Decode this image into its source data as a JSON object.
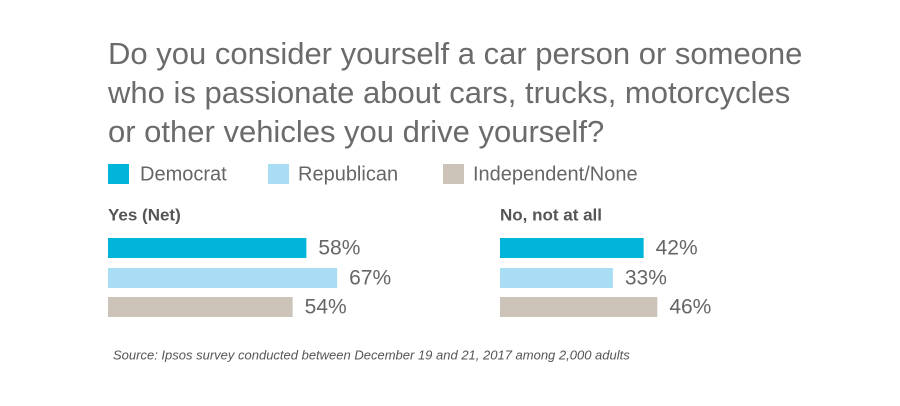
{
  "chart_data": {
    "type": "bar",
    "title": "Do you consider yourself a car person or someone who is passionate about cars, trucks, motorcycles or other vehicles you drive yourself?",
    "categories": [
      "Yes (Net)",
      "No, not at all"
    ],
    "series": [
      {
        "name": "Democrat",
        "color": "#00b5d9",
        "values": [
          58,
          42
        ],
        "value_labels": [
          "58%",
          "42%"
        ]
      },
      {
        "name": "Republican",
        "color": "#a8ddf5",
        "values": [
          67,
          33
        ],
        "value_labels": [
          "67%",
          "33%"
        ]
      },
      {
        "name": "Independent/None",
        "color": "#ccc4b9",
        "values": [
          54,
          46
        ],
        "value_labels": [
          "54%",
          "46%"
        ]
      }
    ],
    "source": "Source: Ipsos survey conducted between December 19 and 21, 2017 among 2,000 adults"
  }
}
